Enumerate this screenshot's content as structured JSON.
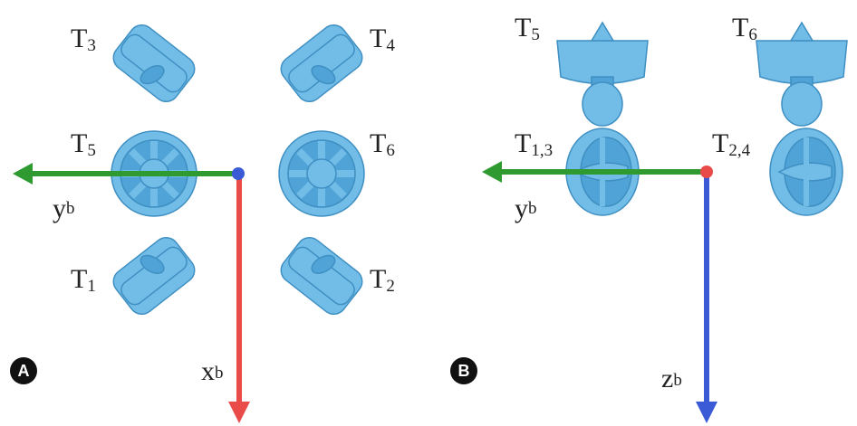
{
  "panels": [
    {
      "badge": "A",
      "thrusters": [
        {
          "letter": "T",
          "index": "3"
        },
        {
          "letter": "T",
          "index": "4"
        },
        {
          "letter": "T",
          "index": "5"
        },
        {
          "letter": "T",
          "index": "6"
        },
        {
          "letter": "T",
          "index": "1"
        },
        {
          "letter": "T",
          "index": "2"
        }
      ],
      "axes": [
        {
          "letter": "y",
          "sub": "b"
        },
        {
          "letter": "x",
          "sub": "b"
        }
      ]
    },
    {
      "badge": "B",
      "thrusters": [
        {
          "letter": "T",
          "index": "5"
        },
        {
          "letter": "T",
          "index": "6"
        },
        {
          "letter": "T",
          "index": "1,3"
        },
        {
          "letter": "T",
          "index": "2,4"
        }
      ],
      "axes": [
        {
          "letter": "y",
          "sub": "b"
        },
        {
          "letter": "z",
          "sub": "b"
        }
      ]
    }
  ]
}
